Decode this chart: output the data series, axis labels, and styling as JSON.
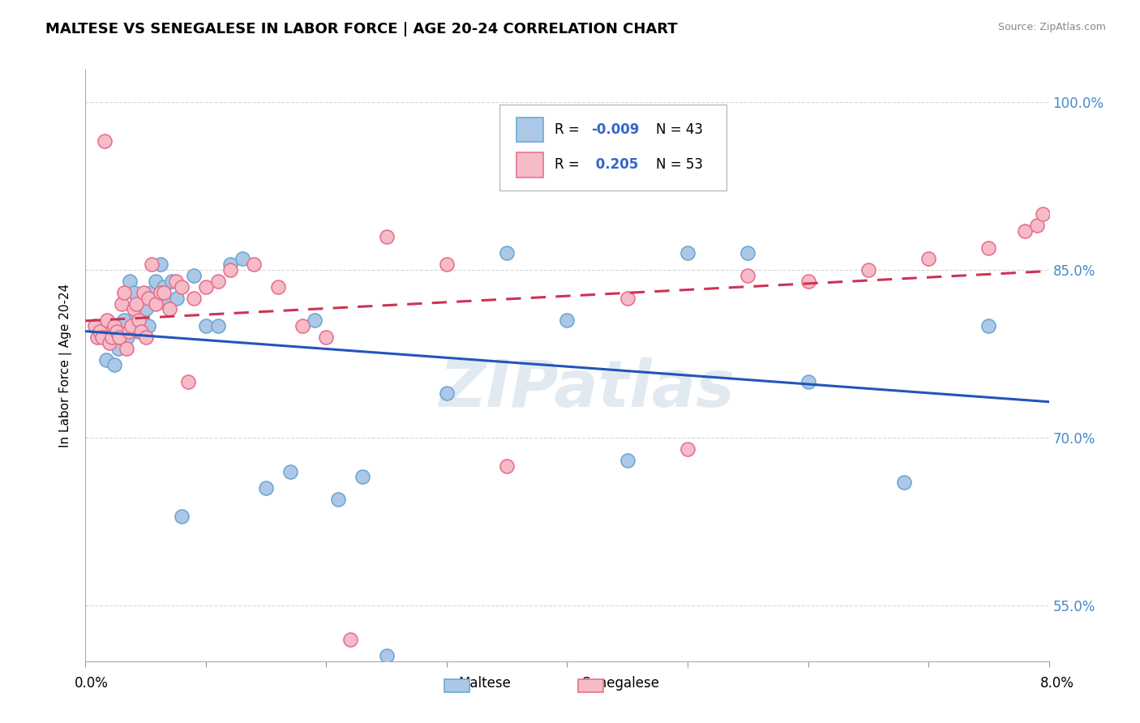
{
  "title": "MALTESE VS SENEGALESE IN LABOR FORCE | AGE 20-24 CORRELATION CHART",
  "source_text": "Source: ZipAtlas.com",
  "ylabel": "In Labor Force | Age 20-24",
  "xmin": 0.0,
  "xmax": 8.0,
  "ymin": 50.0,
  "ymax": 103.0,
  "yticks": [
    55.0,
    70.0,
    85.0,
    100.0
  ],
  "ytick_labels": [
    "55.0%",
    "70.0%",
    "85.0%",
    "100.0%"
  ],
  "legend_r_maltese": "-0.009",
  "legend_n_maltese": "43",
  "legend_r_senegalese": "0.205",
  "legend_n_senegalese": "53",
  "maltese_color": "#adc8e6",
  "maltese_edge": "#6aaad4",
  "senegalese_color": "#f5bcc8",
  "senegalese_edge": "#e87090",
  "trendline_maltese_color": "#2255bb",
  "trendline_senegalese_color": "#cc3355",
  "legend_text_color": "#3366cc",
  "watermark_color": "#d0dce8",
  "maltese_x": [
    0.13,
    0.17,
    0.2,
    0.24,
    0.27,
    0.3,
    0.32,
    0.35,
    0.37,
    0.4,
    0.42,
    0.44,
    0.47,
    0.5,
    0.52,
    0.55,
    0.58,
    0.62,
    0.65,
    0.68,
    0.72,
    0.76,
    0.8,
    0.9,
    1.0,
    1.1,
    1.2,
    1.3,
    1.5,
    1.7,
    1.9,
    2.1,
    2.3,
    2.5,
    3.0,
    3.5,
    4.0,
    4.5,
    5.0,
    5.5,
    6.0,
    6.8,
    7.5
  ],
  "maltese_y": [
    79.5,
    77.0,
    80.0,
    76.5,
    78.0,
    79.0,
    80.5,
    79.0,
    84.0,
    83.0,
    81.0,
    79.5,
    82.0,
    81.5,
    80.0,
    83.0,
    84.0,
    85.5,
    83.5,
    82.0,
    84.0,
    82.5,
    63.0,
    84.5,
    80.0,
    80.0,
    85.5,
    86.0,
    65.5,
    67.0,
    80.5,
    64.5,
    66.5,
    50.5,
    74.0,
    86.5,
    80.5,
    68.0,
    86.5,
    86.5,
    75.0,
    66.0,
    80.0
  ],
  "senegalese_x": [
    0.08,
    0.1,
    0.12,
    0.14,
    0.16,
    0.18,
    0.2,
    0.22,
    0.24,
    0.26,
    0.28,
    0.3,
    0.32,
    0.34,
    0.36,
    0.38,
    0.4,
    0.42,
    0.44,
    0.46,
    0.48,
    0.5,
    0.52,
    0.55,
    0.58,
    0.62,
    0.65,
    0.7,
    0.75,
    0.8,
    0.85,
    0.9,
    1.0,
    1.1,
    1.2,
    1.4,
    1.6,
    1.8,
    2.0,
    2.2,
    2.5,
    3.0,
    3.5,
    4.5,
    5.0,
    5.5,
    6.0,
    6.5,
    7.0,
    7.5,
    7.8,
    7.9,
    7.95
  ],
  "senegalese_y": [
    80.0,
    79.0,
    79.5,
    79.0,
    96.5,
    80.5,
    78.5,
    79.0,
    80.0,
    79.5,
    79.0,
    82.0,
    83.0,
    78.0,
    79.5,
    80.0,
    81.5,
    82.0,
    80.5,
    79.5,
    83.0,
    79.0,
    82.5,
    85.5,
    82.0,
    83.0,
    83.0,
    81.5,
    84.0,
    83.5,
    75.0,
    82.5,
    83.5,
    84.0,
    85.0,
    85.5,
    83.5,
    80.0,
    79.0,
    52.0,
    88.0,
    85.5,
    67.5,
    82.5,
    69.0,
    84.5,
    84.0,
    85.0,
    86.0,
    87.0,
    88.5,
    89.0,
    90.0
  ]
}
